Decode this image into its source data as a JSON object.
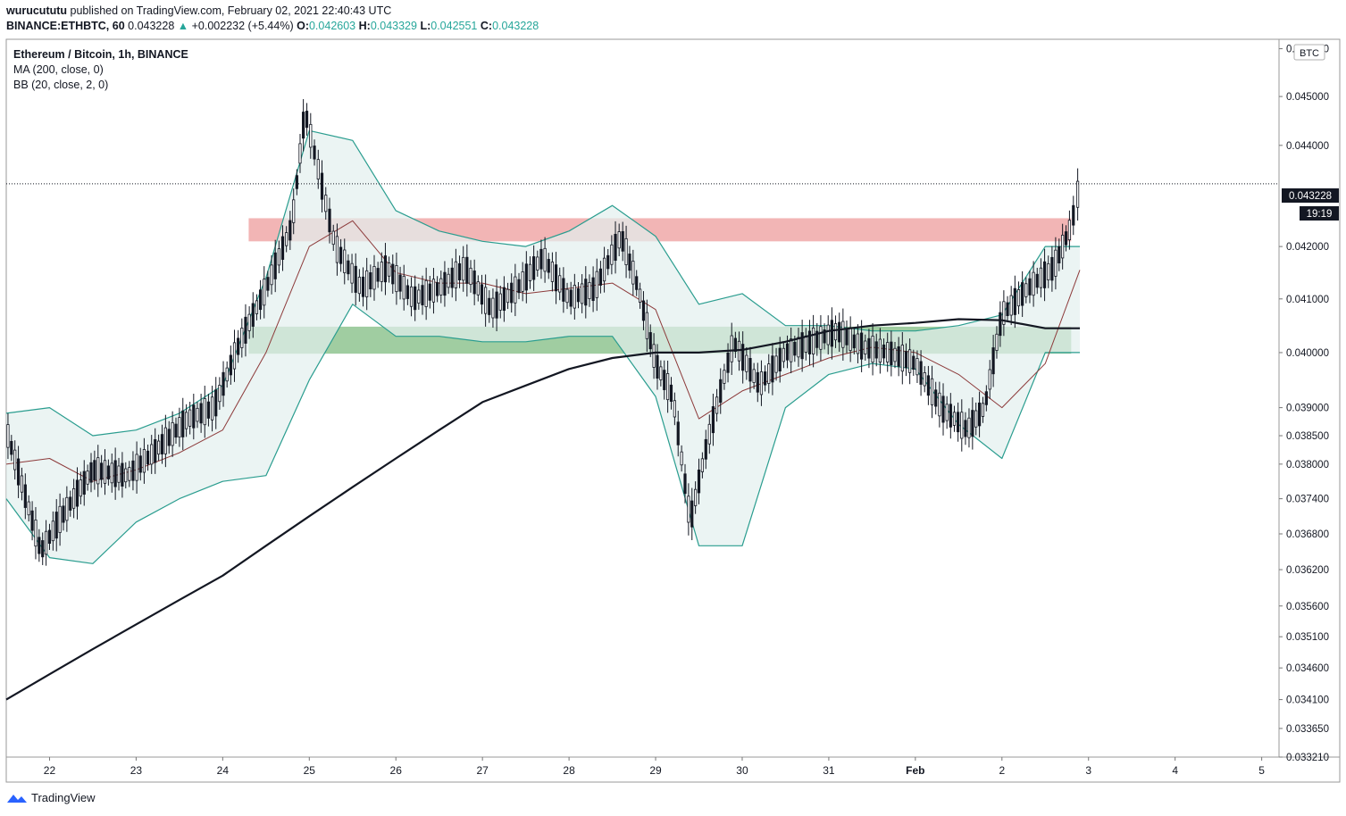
{
  "header": {
    "author": "wurucututu",
    "published": "published on TradingView.com, February 02, 2021 22:40:43 UTC"
  },
  "quote": {
    "symbol": "BINANCE:ETHBTC, 60",
    "price": "0.043228",
    "arrow": "▲",
    "change": "+0.002232 (+5.44%)",
    "o_label": "O:",
    "o": "0.042603",
    "h_label": "H:",
    "h": "0.043329",
    "l_label": "L:",
    "l": "0.042551",
    "c_label": "C:",
    "c": "0.043228"
  },
  "legend": {
    "title": "Ethereum / Bitcoin, 1h, BINANCE",
    "ma": "MA (200, close, 0)",
    "bb": "BB (20, close, 2, 0)"
  },
  "price_axis": {
    "currency": "BTC",
    "last_price": "0.043228",
    "countdown": "19:19",
    "ticks": [
      "0.046000",
      "0.045000",
      "0.044000",
      "0.042000",
      "0.041000",
      "0.040000",
      "0.039000",
      "0.038500",
      "0.038000",
      "0.037400",
      "0.036800",
      "0.036200",
      "0.035600",
      "0.035100",
      "0.034600",
      "0.034100",
      "0.033650",
      "0.033210"
    ]
  },
  "footer": {
    "brand": "TradingView"
  },
  "colors": {
    "up": "#26a69a",
    "candle": "#131722",
    "bb_band": "#2a9d8f",
    "basis": "#8d3b3b",
    "ma": "#131722",
    "resistance_zone": "#f0a8a8",
    "support_zone": "#8fc490"
  },
  "chart_data": {
    "type": "candlestick",
    "title": "Ethereum / Bitcoin, 1h, BINANCE",
    "x_categories": [
      "22",
      "23",
      "24",
      "25",
      "26",
      "27",
      "28",
      "29",
      "30",
      "31",
      "Feb",
      "2",
      "3",
      "4",
      "5"
    ],
    "scale": "logarithmic",
    "ylim": [
      0.03321,
      0.0462
    ],
    "last_price": 0.043228,
    "zones": [
      {
        "name": "resistance",
        "low": 0.0421,
        "high": 0.04255,
        "color": "#f0a8a8"
      },
      {
        "name": "support",
        "low": 0.03998,
        "high": 0.04048,
        "color": "#8fc490"
      }
    ],
    "series": [
      {
        "name": "MA (200, close, 0)",
        "x": [
          21.5,
          22,
          22.5,
          23,
          23.5,
          24,
          24.5,
          25,
          25.5,
          26,
          26.5,
          27,
          27.5,
          28,
          28.5,
          29,
          29.5,
          30,
          30.5,
          31,
          31.5,
          32,
          32.5,
          33,
          33.5,
          33.9
        ],
        "values": [
          0.0341,
          0.0345,
          0.0349,
          0.0353,
          0.0357,
          0.0361,
          0.0366,
          0.0371,
          0.0376,
          0.0381,
          0.0386,
          0.0391,
          0.0394,
          0.0397,
          0.0399,
          0.04,
          0.04,
          0.04005,
          0.0402,
          0.0404,
          0.0405,
          0.04055,
          0.04062,
          0.0406,
          0.04045,
          0.04045
        ]
      },
      {
        "name": "BB upper",
        "x": [
          21.5,
          22,
          22.5,
          23,
          23.5,
          24,
          24.5,
          25,
          25.5,
          26,
          26.5,
          27,
          27.5,
          28,
          28.5,
          29,
          29.5,
          30,
          30.5,
          31,
          31.5,
          32,
          32.5,
          33,
          33.5,
          33.9
        ],
        "values": [
          0.0389,
          0.039,
          0.0385,
          0.0386,
          0.0389,
          0.0394,
          0.0414,
          0.0443,
          0.0441,
          0.0427,
          0.0423,
          0.0421,
          0.042,
          0.0423,
          0.0428,
          0.0422,
          0.0409,
          0.0411,
          0.0405,
          0.0405,
          0.0404,
          0.0404,
          0.0405,
          0.0407,
          0.042,
          0.042
        ]
      },
      {
        "name": "BB basis",
        "x": [
          21.5,
          22,
          22.5,
          23,
          23.5,
          24,
          24.5,
          25,
          25.5,
          26,
          26.5,
          27,
          27.5,
          28,
          28.5,
          29,
          29.5,
          30,
          30.5,
          31,
          31.5,
          32,
          32.5,
          33,
          33.5,
          33.9
        ],
        "values": [
          0.038,
          0.0381,
          0.0377,
          0.0379,
          0.0382,
          0.0386,
          0.04,
          0.042,
          0.0425,
          0.0415,
          0.0413,
          0.0413,
          0.0411,
          0.0412,
          0.0413,
          0.0408,
          0.0388,
          0.0393,
          0.0396,
          0.0399,
          0.0401,
          0.04,
          0.0396,
          0.039,
          0.0398,
          0.04155
        ]
      },
      {
        "name": "BB lower",
        "x": [
          21.5,
          22,
          22.5,
          23,
          23.5,
          24,
          24.5,
          25,
          25.5,
          26,
          26.5,
          27,
          27.5,
          28,
          28.5,
          29,
          29.5,
          30,
          30.5,
          31,
          31.5,
          32,
          32.5,
          33,
          33.5,
          33.9
        ],
        "values": [
          0.0374,
          0.0364,
          0.0363,
          0.037,
          0.0374,
          0.0377,
          0.0378,
          0.0395,
          0.0409,
          0.0403,
          0.0403,
          0.0402,
          0.0402,
          0.0403,
          0.0403,
          0.0392,
          0.0366,
          0.0366,
          0.039,
          0.0396,
          0.0398,
          0.0397,
          0.0387,
          0.0381,
          0.04,
          0.04
        ]
      },
      {
        "name": "close",
        "x": [
          21.5,
          21.9,
          22.1,
          22.5,
          22.9,
          23.2,
          23.6,
          23.9,
          24.2,
          24.5,
          24.8,
          24.95,
          25.3,
          25.6,
          25.9,
          26.2,
          26.5,
          26.8,
          27.1,
          27.4,
          27.7,
          28.0,
          28.3,
          28.6,
          28.8,
          29.0,
          29.2,
          29.4,
          29.6,
          29.9,
          30.2,
          30.5,
          30.8,
          31.1,
          31.4,
          31.7,
          32.0,
          32.3,
          32.6,
          32.8,
          33.0,
          33.3,
          33.6,
          33.8,
          33.9
        ],
        "values": [
          0.0386,
          0.0365,
          0.037,
          0.0379,
          0.0378,
          0.0382,
          0.0388,
          0.039,
          0.0402,
          0.0412,
          0.0424,
          0.0447,
          0.042,
          0.0412,
          0.0416,
          0.041,
          0.0412,
          0.0416,
          0.0408,
          0.0412,
          0.0418,
          0.041,
          0.0412,
          0.0422,
          0.0412,
          0.0398,
          0.0392,
          0.037,
          0.0384,
          0.0402,
          0.0394,
          0.04,
          0.0402,
          0.0404,
          0.0401,
          0.04,
          0.0398,
          0.039,
          0.0386,
          0.039,
          0.0407,
          0.0412,
          0.0416,
          0.0424,
          0.043228
        ]
      }
    ],
    "grid": false
  }
}
